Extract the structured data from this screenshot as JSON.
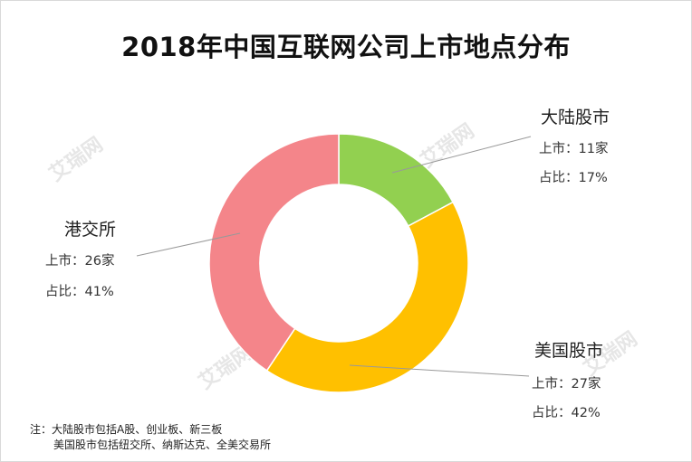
{
  "title": "2018年中国互联网公司上市地点分布",
  "chart_data": {
    "type": "pie",
    "donut": true,
    "unit": "家",
    "slices": [
      {
        "name": "大陆股市",
        "value": 11,
        "percent": "17%",
        "color": "#92d050",
        "count_label": "上市：11家",
        "share_label": "占比：17%"
      },
      {
        "name": "美国股市",
        "value": 27,
        "percent": "42%",
        "color": "#ffc000",
        "count_label": "上市：27家",
        "share_label": "占比：42%"
      },
      {
        "name": "港交所",
        "value": 26,
        "percent": "41%",
        "color": "#f4858a",
        "count_label": "上市：26家",
        "share_label": "占比：41%"
      }
    ]
  },
  "note": {
    "line1": "注：大陆股市包括A股、创业板、新三板",
    "line2": "美国股市包括纽交所、纳斯达克、全美交易所"
  },
  "watermark": "艾瑞网"
}
